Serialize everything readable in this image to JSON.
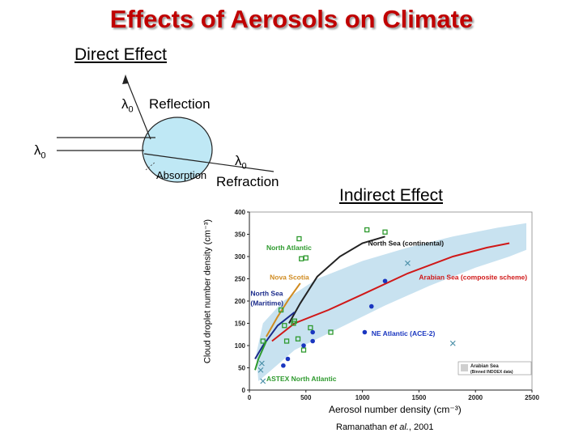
{
  "title": "Effects of Aerosols on Climate",
  "direct": {
    "heading": "Direct Effect",
    "lambda": "λ",
    "sub0": "0",
    "reflection": "Reflection",
    "absorption": "Absorption",
    "refraction": "Refraction"
  },
  "indirect": {
    "heading": "Indirect Effect"
  },
  "chart_data": {
    "type": "scatter",
    "xlabel": "Aerosol number density (cm⁻³)",
    "ylabel": "Cloud droplet number density (cm⁻³)",
    "xlim": [
      0,
      2500
    ],
    "ylim": [
      0,
      400
    ],
    "x_ticks": [
      "0",
      "500",
      "1000",
      "1500",
      "2000",
      "2500"
    ],
    "y_ticks": [
      "0",
      "50",
      "100",
      "150",
      "200",
      "250",
      "300",
      "350",
      "400"
    ],
    "grid": false,
    "series": [
      {
        "name": "North Atlantic",
        "marker": "open-square",
        "color": "#2e9a2e",
        "points": [
          [
            120,
            110
          ],
          [
            280,
            180
          ],
          [
            310,
            145
          ],
          [
            330,
            110
          ],
          [
            390,
            150
          ],
          [
            400,
            155
          ],
          [
            430,
            115
          ],
          [
            480,
            90
          ],
          [
            540,
            140
          ],
          [
            720,
            130
          ],
          [
            440,
            340
          ],
          [
            460,
            295
          ],
          [
            500,
            297
          ],
          [
            1040,
            360
          ],
          [
            1200,
            355
          ]
        ]
      },
      {
        "name": "NE Atlantic (ACE-2)",
        "marker": "filled-circle",
        "color": "#1a36c0",
        "points": [
          [
            300,
            55
          ],
          [
            340,
            70
          ],
          [
            480,
            100
          ],
          [
            560,
            130
          ],
          [
            560,
            110
          ],
          [
            1020,
            130
          ],
          [
            1080,
            188
          ],
          [
            1200,
            245
          ]
        ]
      },
      {
        "name": "ASTEX North Atlantic",
        "marker": "x",
        "color": "#4a8fa8",
        "points": [
          [
            100,
            45
          ],
          [
            110,
            60
          ],
          [
            120,
            20
          ],
          [
            1400,
            285
          ],
          [
            1800,
            105
          ]
        ]
      }
    ],
    "curves": [
      {
        "name": "North Sea (continental)",
        "color": "#222222",
        "points": [
          [
            350,
            150
          ],
          [
            450,
            195
          ],
          [
            600,
            255
          ],
          [
            800,
            300
          ],
          [
            1000,
            330
          ],
          [
            1200,
            345
          ]
        ]
      },
      {
        "name": "Arabian Sea (composite scheme)",
        "color": "#d01818",
        "points": [
          [
            200,
            110
          ],
          [
            400,
            150
          ],
          [
            700,
            180
          ],
          [
            1000,
            215
          ],
          [
            1400,
            262
          ],
          [
            1800,
            300
          ],
          [
            2100,
            320
          ],
          [
            2300,
            330
          ]
        ]
      },
      {
        "name": "Nova Scotia",
        "color": "#d08b20",
        "points": [
          [
            150,
            120
          ],
          [
            250,
            165
          ],
          [
            350,
            205
          ],
          [
            450,
            240
          ]
        ]
      },
      {
        "name": "North Sea (Maritime)",
        "color": "#1a2a8a",
        "points": [
          [
            50,
            70
          ],
          [
            120,
            100
          ],
          [
            250,
            145
          ],
          [
            400,
            175
          ]
        ]
      },
      {
        "name": "ASTEX North Atlantic",
        "color": "#2e9a2e",
        "points": [
          [
            50,
            45
          ],
          [
            80,
            70
          ],
          [
            150,
            110
          ]
        ]
      }
    ],
    "annotations": [
      {
        "text": "North Sea (continental)",
        "x": 1050,
        "y": 325,
        "color": "#111111"
      },
      {
        "text": "North Atlantic",
        "x": 150,
        "y": 315,
        "color": "#2e9a2e"
      },
      {
        "text": "Arabian Sea (composite scheme)",
        "x": 1500,
        "y": 248,
        "color": "#d01818"
      },
      {
        "text": "Nova Scotia",
        "x": 180,
        "y": 248,
        "color": "#d08b20"
      },
      {
        "text": "North Sea",
        "x": 10,
        "y": 212,
        "color": "#1a2a8a"
      },
      {
        "text": "(Maritime)",
        "x": 10,
        "y": 190,
        "color": "#1a2a8a"
      },
      {
        "text": "NE Atlantic (ACE-2)",
        "x": 1080,
        "y": 122,
        "color": "#1a36c0"
      },
      {
        "text": "ASTEX North Atlantic",
        "x": 150,
        "y": 20,
        "color": "#2e9a2e"
      }
    ],
    "legend": {
      "label": "Arabian Sea",
      "sublabel": "(Binned INDOEX data)",
      "position": "bottom-right",
      "color": "#cfcfcf"
    }
  },
  "citation": {
    "author": "Ramanathan ",
    "etal": "et al.",
    "year": ", 2001"
  }
}
